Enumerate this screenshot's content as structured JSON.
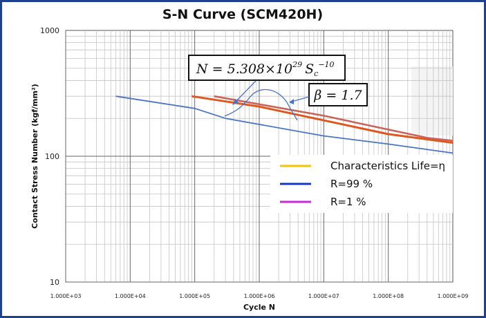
{
  "chart_data": {
    "type": "line",
    "title": "S-N Curve (SCM420H)",
    "xlabel": "Cycle N",
    "ylabel": "Contact Stress Number (kgf/mm²)",
    "x_scale": "log",
    "y_scale": "log",
    "xlim": [
      1000,
      1000000000
    ],
    "ylim": [
      10,
      1000
    ],
    "grid": true,
    "x_ticks": [
      "1.000E+03",
      "1.000E+04",
      "1.000E+05",
      "1.000E+06",
      "1.000E+07",
      "1.000E+08",
      "1.000E+09"
    ],
    "y_ticks": [
      "10",
      "100",
      "1000"
    ],
    "legend_position": "center-right",
    "legend": [
      {
        "label": "Characteristics Life=η",
        "color": "#f5c400"
      },
      {
        "label": "R=99 %",
        "color": "#1538c4"
      },
      {
        "label": "R=1 %",
        "color": "#c52ad6"
      }
    ],
    "series": [
      {
        "color": "#4a72c8",
        "points": [
          [
            6000,
            300
          ],
          [
            100000,
            240
          ],
          [
            300000,
            200
          ],
          [
            10000000,
            145
          ],
          [
            100000000,
            125
          ],
          [
            1000000000,
            106
          ]
        ]
      },
      {
        "color": "#e0561d",
        "points": [
          [
            90000,
            300
          ],
          [
            1000000,
            248
          ],
          [
            100000000,
            150
          ],
          [
            1000000000,
            128
          ]
        ]
      },
      {
        "color": "#c8645a",
        "points": [
          [
            200000,
            300
          ],
          [
            10000000,
            210
          ],
          [
            400000000,
            140
          ],
          [
            1000000000,
            133
          ]
        ]
      }
    ],
    "annotations": [
      {
        "text": "N = 5.308×10",
        "sup": "29",
        "text2": "S",
        "sub": "c",
        "sup2": "−10"
      },
      {
        "text": "β = 1.7"
      }
    ]
  }
}
